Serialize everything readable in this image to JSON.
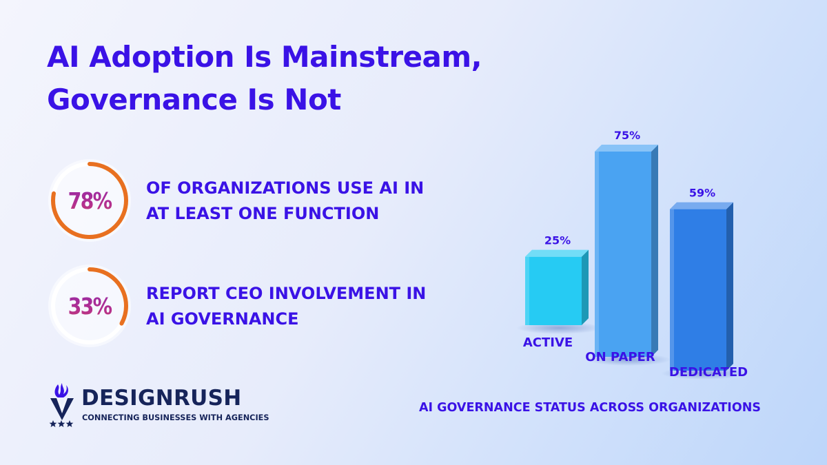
{
  "headline": {
    "line1": "AI Adoption Is Mainstream,",
    "line2": "Governance Is Not"
  },
  "stats": [
    {
      "value": "78%",
      "fraction": 0.78,
      "line1": "OF ORGANIZATIONS USE AI IN",
      "line2": "AT LEAST ONE FUNCTION"
    },
    {
      "value": "33%",
      "fraction": 0.33,
      "line1": "REPORT CEO INVOLVEMENT IN",
      "line2": "AI GOVERNANCE"
    }
  ],
  "chart_data": {
    "type": "bar",
    "title": "AI GOVERNANCE STATUS ACROSS ORGANIZATIONS",
    "categories": [
      "ACTIVE",
      "ON PAPER",
      "DEDICATED"
    ],
    "values": [
      25,
      75,
      59
    ],
    "data_labels": [
      "25%",
      "75%",
      "59%"
    ],
    "ylim": [
      0,
      75
    ],
    "grid": false,
    "style": "3d-column",
    "colors": [
      "#26cbf3",
      "#4aa3f2",
      "#2f7ee6"
    ]
  },
  "colors": {
    "accent": "#3a12e6",
    "ring": "#e87020",
    "ring_track": "#ffffff",
    "brand_navy": "#16245a"
  },
  "brand": {
    "name": "DESIGNRUSH",
    "tagline": "CONNECTING BUSINESSES WITH AGENCIES",
    "stars": "★★★"
  }
}
